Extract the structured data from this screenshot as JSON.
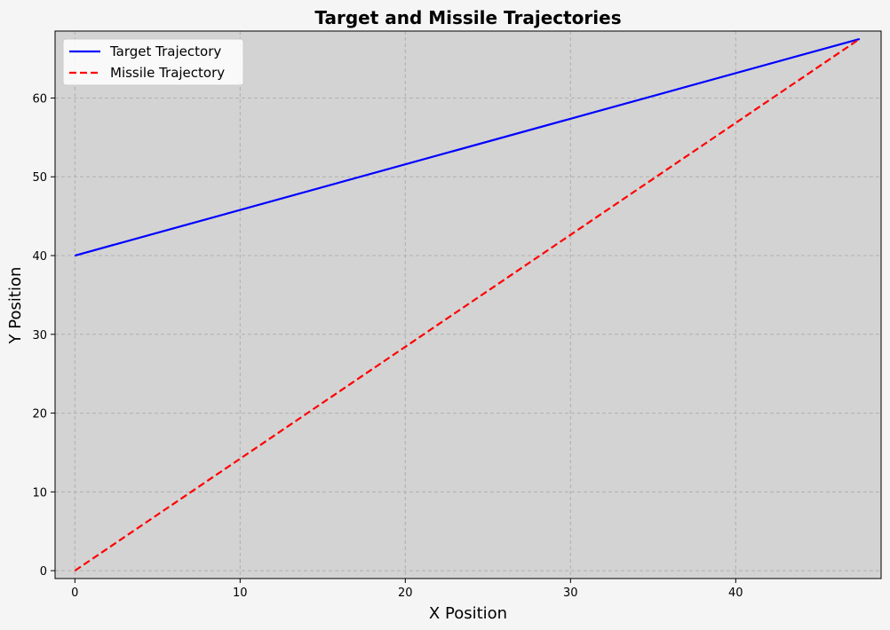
{
  "chart_data": {
    "type": "line",
    "title": "Target and Missile Trajectories",
    "xlabel": "X Position",
    "ylabel": "Y Position",
    "xlim": [
      -1.2,
      48.8
    ],
    "ylim": [
      -1,
      68.5
    ],
    "xticks": [
      0,
      10,
      20,
      30,
      40
    ],
    "yticks": [
      0,
      10,
      20,
      30,
      40,
      50,
      60
    ],
    "grid": true,
    "legend_position": "top-left",
    "background_color": "#d3d3d3",
    "series": [
      {
        "name": "Target Trajectory",
        "color": "#0000ff",
        "style": "solid",
        "x": [
          0,
          47.5
        ],
        "y": [
          40,
          67.5
        ]
      },
      {
        "name": "Missile Trajectory",
        "color": "#ff0000",
        "style": "dashed",
        "x": [
          0,
          47.5
        ],
        "y": [
          0,
          67.5
        ]
      }
    ]
  }
}
